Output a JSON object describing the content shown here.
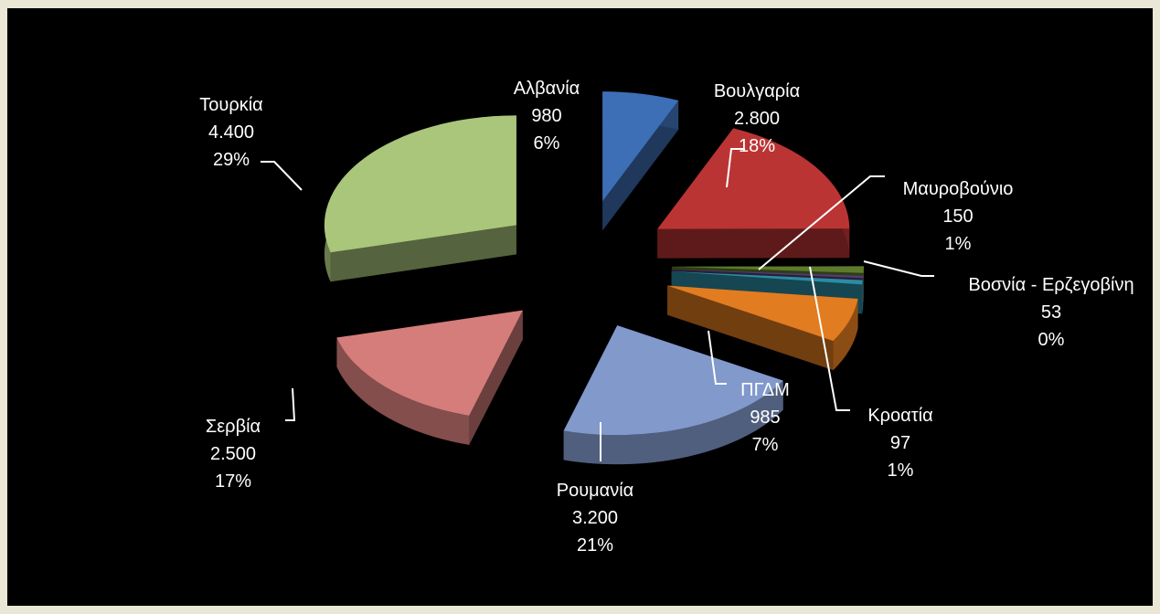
{
  "chart_data": {
    "type": "pie3d",
    "categories": [
      "Αλβανία",
      "Βουλγαρία",
      "Μαυροβούνιο",
      "Βοσνία - Ερζεγοβίνη",
      "Κροατία",
      "ΠΓΔΜ",
      "Ρουμανία",
      "Σερβία",
      "Τουρκία"
    ],
    "values": [
      980,
      2800,
      150,
      53,
      97,
      985,
      3200,
      2500,
      4400
    ],
    "value_labels": [
      "980",
      "2.800",
      "150",
      "53",
      "97",
      "985",
      "3.200",
      "2.500",
      "4.400"
    ],
    "percent_labels": [
      "6%",
      "18%",
      "1%",
      "0%",
      "1%",
      "7%",
      "21%",
      "17%",
      "29%"
    ],
    "colors": [
      "#3d6fb6",
      "#bb3434",
      "#5e7a2c",
      "#523d72",
      "#2a8ca3",
      "#e27c20",
      "#8199cb",
      "#d57d7b",
      "#a9c67b"
    ]
  }
}
